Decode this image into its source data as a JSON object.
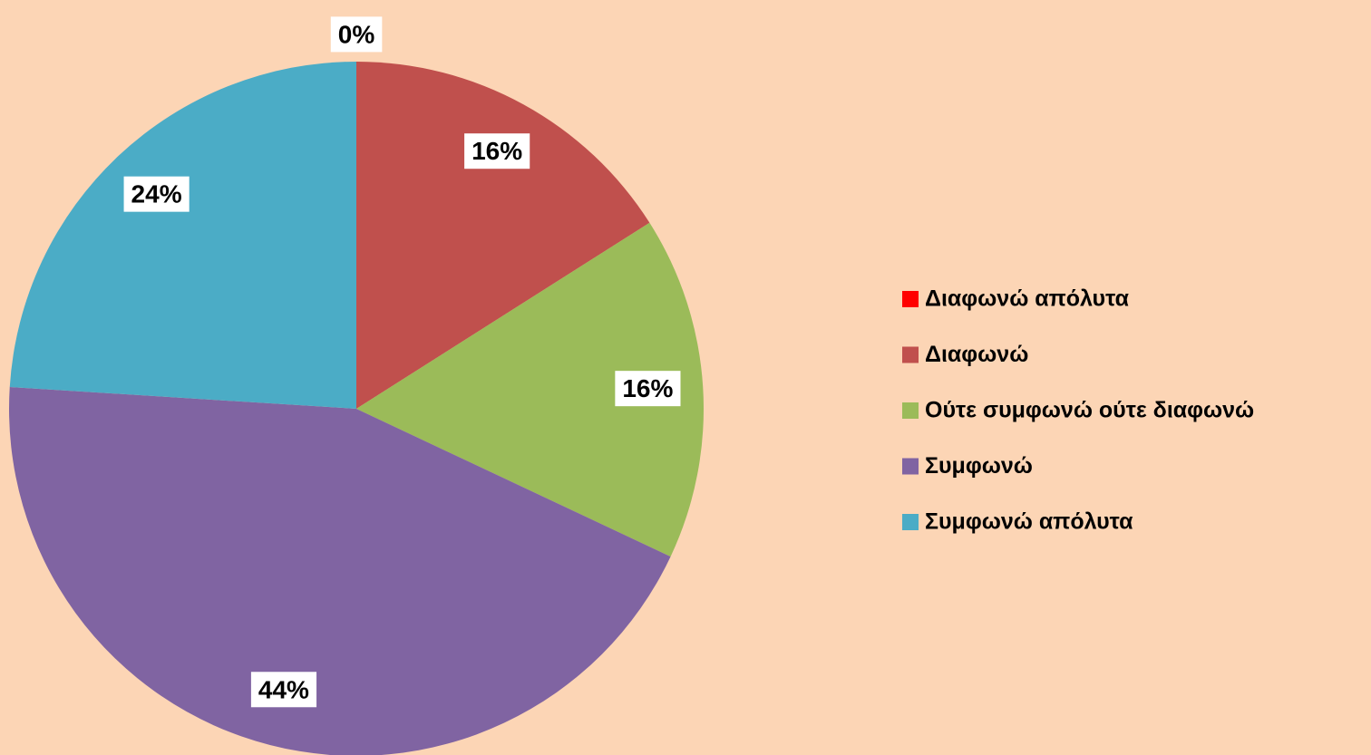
{
  "chart_data": {
    "type": "pie",
    "categories": [
      "Διαφωνώ απόλυτα",
      "Διαφωνώ",
      "Ούτε συμφωνώ ούτε διαφωνώ",
      "Συμφωνώ",
      "Συμφωνώ απόλυτα"
    ],
    "values": [
      0,
      16,
      16,
      44,
      24
    ],
    "value_labels": [
      "0%",
      "16%",
      "16%",
      "44%",
      "24%"
    ],
    "colors": [
      "#ff0000",
      "#c0504d",
      "#9bbb59",
      "#8064a2",
      "#4bacc6"
    ],
    "legend": "right"
  }
}
